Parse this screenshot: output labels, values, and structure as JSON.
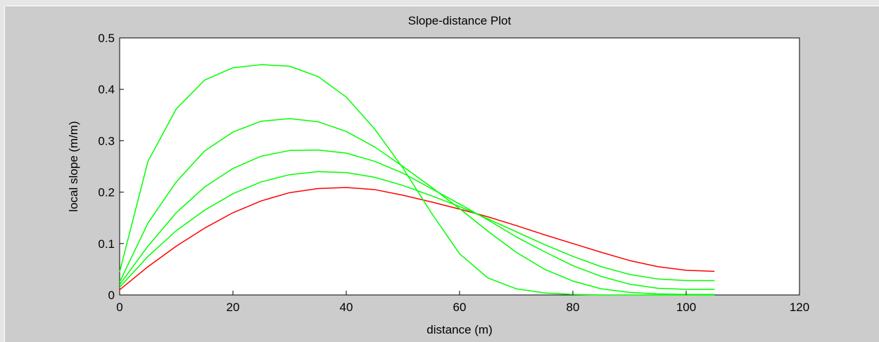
{
  "chart_data": {
    "type": "line",
    "title": "Slope-distance Plot",
    "xlabel": "distance (m)",
    "ylabel": "local slope (m/m)",
    "xlim": [
      0,
      120
    ],
    "ylim": [
      0,
      0.5
    ],
    "xticks": [
      0,
      20,
      40,
      60,
      80,
      100,
      120
    ],
    "yticks": [
      0,
      0.1,
      0.2,
      0.3,
      0.4,
      0.5
    ],
    "xtick_labels": [
      "0",
      "20",
      "40",
      "60",
      "80",
      "100",
      "120"
    ],
    "ytick_labels": [
      "0",
      "0.1",
      "0.2",
      "0.3",
      "0.4",
      "0.5"
    ],
    "grid": false,
    "legend": "none",
    "x": [
      0,
      5,
      10,
      15,
      20,
      25,
      30,
      35,
      40,
      45,
      50,
      55,
      60,
      65,
      70,
      75,
      80,
      85,
      90,
      95,
      100,
      105
    ],
    "series": [
      {
        "color": "#ff0000",
        "values": [
          0.01,
          0.055,
          0.095,
          0.13,
          0.16,
          0.183,
          0.199,
          0.207,
          0.209,
          0.205,
          0.194,
          0.181,
          0.167,
          0.152,
          0.135,
          0.117,
          0.1,
          0.083,
          0.067,
          0.055,
          0.048,
          0.046
        ]
      },
      {
        "color": "#00ff00",
        "values": [
          0.015,
          0.075,
          0.125,
          0.165,
          0.197,
          0.22,
          0.234,
          0.24,
          0.238,
          0.229,
          0.213,
          0.193,
          0.172,
          0.148,
          0.123,
          0.098,
          0.075,
          0.055,
          0.04,
          0.031,
          0.028,
          0.028
        ]
      },
      {
        "color": "#00ff00",
        "values": [
          0.02,
          0.095,
          0.16,
          0.21,
          0.246,
          0.27,
          0.281,
          0.282,
          0.276,
          0.26,
          0.237,
          0.207,
          0.177,
          0.146,
          0.113,
          0.084,
          0.057,
          0.036,
          0.021,
          0.013,
          0.011,
          0.011
        ]
      },
      {
        "color": "#00ff00",
        "values": [
          0.025,
          0.14,
          0.22,
          0.28,
          0.317,
          0.338,
          0.343,
          0.337,
          0.318,
          0.288,
          0.25,
          0.21,
          0.168,
          0.124,
          0.083,
          0.05,
          0.027,
          0.012,
          0.005,
          0.002,
          0.001,
          0.001
        ]
      },
      {
        "color": "#00ff00",
        "values": [
          0.045,
          0.26,
          0.362,
          0.418,
          0.442,
          0.448,
          0.445,
          0.425,
          0.385,
          0.323,
          0.247,
          0.16,
          0.08,
          0.033,
          0.012,
          0.004,
          0.001,
          0.0,
          0.0,
          0.0,
          0.0,
          0.0
        ]
      }
    ]
  }
}
